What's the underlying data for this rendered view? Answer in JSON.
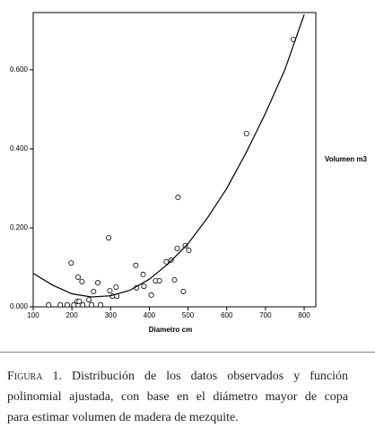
{
  "chart_data": {
    "type": "scatter",
    "xlabel": "Diametro cm",
    "ylabel": "Volumen m3",
    "xlim": [
      100,
      830
    ],
    "ylim": [
      0,
      0.745
    ],
    "xticks": [
      100,
      200,
      300,
      400,
      500,
      600,
      700,
      800
    ],
    "yticks": [
      {
        "value": 0,
        "label": "0.000"
      },
      {
        "value": 0.2,
        "label": "0.200"
      },
      {
        "value": 0.4,
        "label": "0.400"
      },
      {
        "value": 0.6,
        "label": "0.600"
      }
    ],
    "series": [
      {
        "type": "scatter",
        "color": "#000000",
        "x": [
          140,
          170,
          188,
          198,
          205,
          214,
          216,
          219,
          226,
          228,
          244,
          251,
          256,
          267,
          274,
          295,
          298,
          305,
          314,
          316,
          365,
          367,
          384,
          386,
          405,
          416,
          426,
          444,
          456,
          465,
          472,
          474,
          488,
          493,
          502,
          651,
          772
        ],
        "values": [
          0.005,
          0.005,
          0.005,
          0.111,
          0.005,
          0.014,
          0.075,
          0.014,
          0.064,
          0.005,
          0.018,
          0.005,
          0.039,
          0.061,
          0.005,
          0.175,
          0.041,
          0.027,
          0.05,
          0.027,
          0.105,
          0.048,
          0.082,
          0.052,
          0.03,
          0.066,
          0.066,
          0.114,
          0.118,
          0.068,
          0.148,
          0.277,
          0.039,
          0.155,
          0.143,
          0.439,
          0.677
        ]
      },
      {
        "type": "line",
        "color": "#000000",
        "x": [
          100,
          150,
          200,
          250,
          300,
          350,
          400,
          450,
          500,
          550,
          600,
          650,
          700,
          750,
          800
        ],
        "values": [
          0.085,
          0.055,
          0.033,
          0.025,
          0.028,
          0.042,
          0.07,
          0.11,
          0.16,
          0.225,
          0.3,
          0.39,
          0.49,
          0.6,
          0.74
        ]
      }
    ]
  },
  "caption": {
    "label": "Figura 1.",
    "lines": [
      "Distribución de los datos observados y función",
      "polinomial ajustada, con base en el diámetro mayor de copa",
      "para estimar volumen de madera de mezquite."
    ]
  }
}
